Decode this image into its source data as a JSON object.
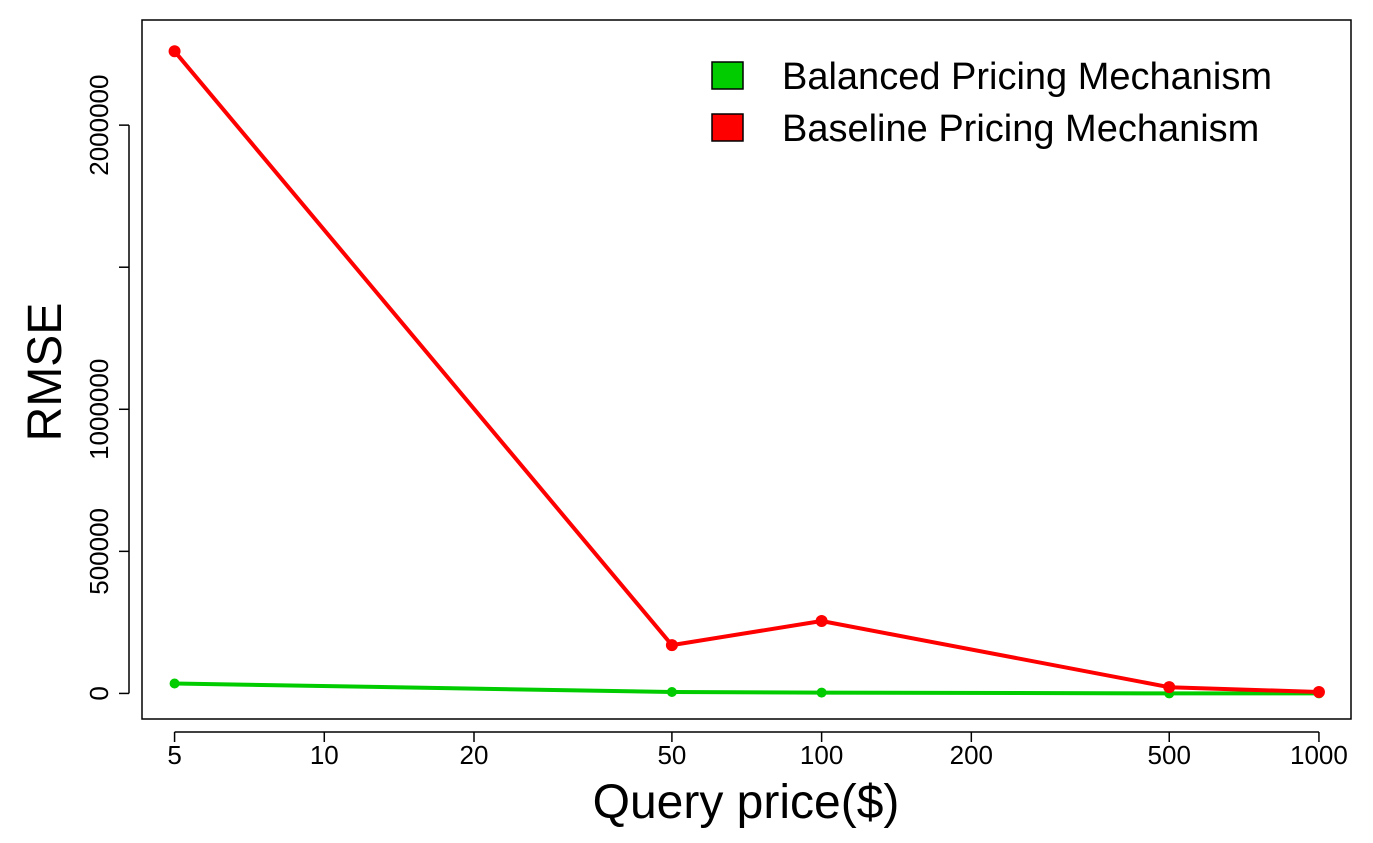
{
  "chart_data": {
    "type": "line",
    "title": "",
    "xlabel": "Query price($)",
    "ylabel": "RMSE",
    "x_scale": "log",
    "x_ticks": [
      5,
      10,
      20,
      50,
      100,
      200,
      500,
      1000
    ],
    "x_tick_labels": [
      "5",
      "10",
      "20",
      "50",
      "100",
      "200",
      "500",
      "1000"
    ],
    "xlim": [
      4.3,
      1160
    ],
    "y_ticks": [
      0,
      500000,
      1000000,
      1500000,
      2000000
    ],
    "y_tick_labels": [
      "0",
      "500000",
      "1000000",
      "",
      "2000000"
    ],
    "ylim": [
      -90000,
      2370000
    ],
    "legend_position": "top-right",
    "grid": false,
    "series": [
      {
        "name": "Balanced Pricing Mechanism",
        "color": "#00cc00",
        "x": [
          5,
          50,
          100,
          500,
          1000
        ],
        "y": [
          35000,
          5000,
          3000,
          0,
          0
        ]
      },
      {
        "name": "Baseline Pricing Mechanism",
        "color": "#ff0000",
        "x": [
          5,
          50,
          100,
          500,
          1000
        ],
        "y": [
          2260000,
          170000,
          255000,
          22000,
          5000
        ]
      }
    ]
  }
}
